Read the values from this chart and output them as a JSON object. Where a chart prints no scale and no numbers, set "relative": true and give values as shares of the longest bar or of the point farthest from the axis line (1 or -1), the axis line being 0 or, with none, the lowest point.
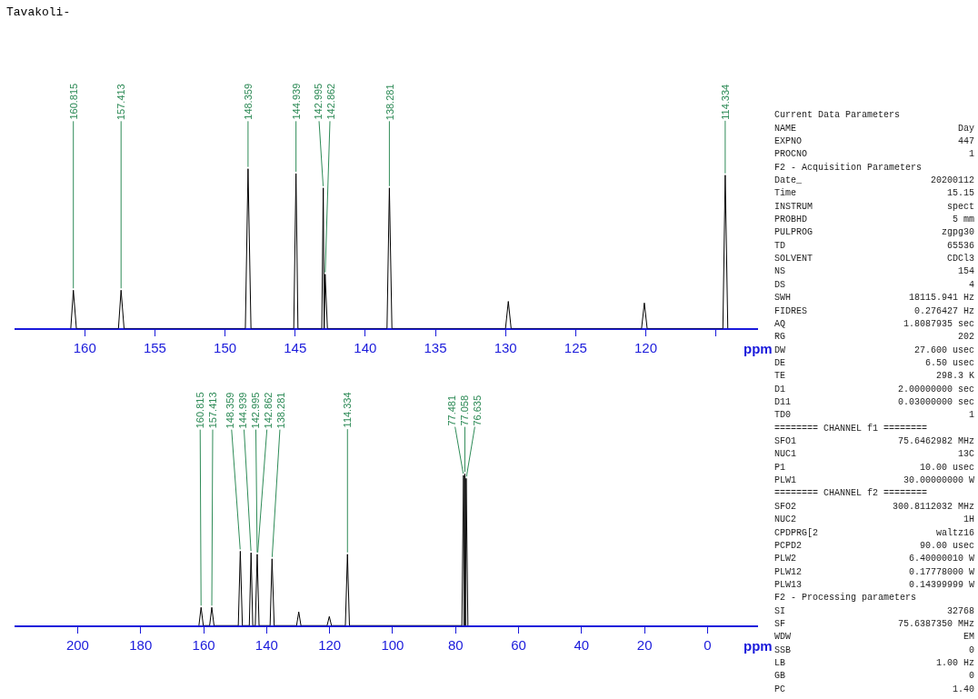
{
  "chart_data": [
    {
      "type": "line",
      "title": "Tavakoli-",
      "xlabel": "ppm",
      "relative": true,
      "color": "#000000",
      "xlim": [
        165,
        112
      ],
      "xticks": [
        160,
        155,
        150,
        145,
        140,
        135,
        130,
        125,
        120,
        {
          "value": 115,
          "label": null
        }
      ],
      "x": [
        161.0,
        160.815,
        160.6,
        157.6,
        157.413,
        157.2,
        148.55,
        148.359,
        148.15,
        145.1,
        144.939,
        144.8,
        143.1,
        142.995,
        142.93,
        142.862,
        142.7,
        138.45,
        138.281,
        138.1,
        130.0,
        129.8,
        129.6,
        120.3,
        120.1,
        119.9,
        114.5,
        114.334,
        114.15
      ],
      "values": [
        0,
        0.24,
        0,
        0,
        0.24,
        0,
        0,
        1,
        0,
        0,
        0.97,
        0,
        0,
        0.88,
        0,
        0.34,
        0,
        0,
        0.88,
        0,
        0,
        0.17,
        0,
        0,
        0.16,
        0,
        0,
        0.96,
        0
      ],
      "annotations": [
        {
          "text": "160.815",
          "x": 160.815,
          "y": 0.24
        },
        {
          "text": "157.413",
          "x": 157.413,
          "y": 0.24
        },
        {
          "text": "148.359",
          "x": 148.359,
          "y": 1
        },
        {
          "text": "144.939",
          "x": 144.939,
          "y": 0.97
        },
        {
          "text": "142.995",
          "x": 142.995,
          "y": 0.88
        },
        {
          "text": "142.862",
          "x": 142.862,
          "y": 0.34
        },
        {
          "text": "138.281",
          "x": 138.281,
          "y": 0.88
        },
        {
          "text": "114.334",
          "x": 114.334,
          "y": 0.96
        }
      ]
    },
    {
      "type": "line",
      "xlabel": "ppm",
      "relative": true,
      "color": "#000000",
      "xlim": [
        220,
        -16
      ],
      "xticks": [
        200,
        180,
        160,
        140,
        120,
        100,
        80,
        60,
        40,
        20,
        0
      ],
      "x": [
        161.5,
        160.815,
        160.1,
        158.1,
        157.413,
        156.7,
        149.0,
        148.359,
        147.7,
        145.5,
        144.939,
        144.4,
        143.6,
        142.995,
        142.4,
        138.9,
        138.281,
        137.6,
        130.5,
        129.8,
        129.1,
        120.8,
        120.1,
        119.4,
        115.0,
        114.334,
        113.7,
        78.0,
        77.481,
        77.27,
        77.058,
        76.85,
        76.635,
        76.1
      ],
      "values": [
        0,
        0.12,
        0,
        0,
        0.12,
        0,
        0,
        0.49,
        0,
        0,
        0.48,
        0,
        0,
        0.47,
        0,
        0,
        0.44,
        0,
        0,
        0.09,
        0,
        0,
        0.06,
        0,
        0,
        0.47,
        0,
        0,
        0.99,
        0,
        1,
        0,
        0.97,
        0
      ],
      "annotations": [
        {
          "text": "160.815",
          "x": 160.815,
          "y": 0.12
        },
        {
          "text": "157.413",
          "x": 157.413,
          "y": 0.12
        },
        {
          "text": "148.359",
          "x": 148.359,
          "y": 0.49
        },
        {
          "text": "144.939",
          "x": 144.939,
          "y": 0.48
        },
        {
          "text": "142.995",
          "x": 142.995,
          "y": 0.47
        },
        {
          "text": "142.862",
          "x": 142.862,
          "y": 0.47
        },
        {
          "text": "138.281",
          "x": 138.281,
          "y": 0.44
        },
        {
          "text": "114.334",
          "x": 114.334,
          "y": 0.47
        },
        {
          "text": "77.481",
          "x": 77.481,
          "y": 0.99
        },
        {
          "text": "77.058",
          "x": 77.058,
          "y": 1
        },
        {
          "text": "76.635",
          "x": 76.635,
          "y": 0.97
        }
      ]
    },
    {
      "type": "other",
      "annotations": [
        "Current Data Parameters",
        "NAME  Day",
        "EXPNO  447",
        "PROCNO  1",
        "F2 - Acquisition Parameters",
        "Date_  20200112",
        "Time  15.15",
        "INSTRUM  spect",
        "PROBHD  5 mm",
        "PULPROG  zgpg30",
        "TD  65536",
        "SOLVENT  CDCl3",
        "NS  154",
        "DS  4",
        "SWH  18115.941 Hz",
        "FIDRES  0.276427 Hz",
        "AQ  1.8087935 sec",
        "RG  202",
        "DW  27.600 usec",
        "DE  6.50 usec",
        "TE  298.3 K",
        "D1  2.00000000 sec",
        "D11  0.03000000 sec",
        "TD0  1",
        "======== CHANNEL f1 ========",
        "SFO1  75.6462982 MHz",
        "NUC1  13C",
        "P1  10.00 usec",
        "PLW1  30.00000000 W",
        "======== CHANNEL f2 ========",
        "SFO2  300.8112032 MHz",
        "NUC2  1H",
        "CPDPRG[2  waltz16",
        "PCPD2  90.00 usec",
        "PLW2  6.40000010 W",
        "PLW12  0.17778000 W",
        "PLW13  0.14399999 W",
        "F2 - Processing parameters",
        "SI  32768",
        "SF  75.6387350 MHz",
        "WDW  EM",
        "SSB  0",
        "LB  1.00 Hz",
        "GB  0",
        "PC  1.40"
      ]
    }
  ]
}
